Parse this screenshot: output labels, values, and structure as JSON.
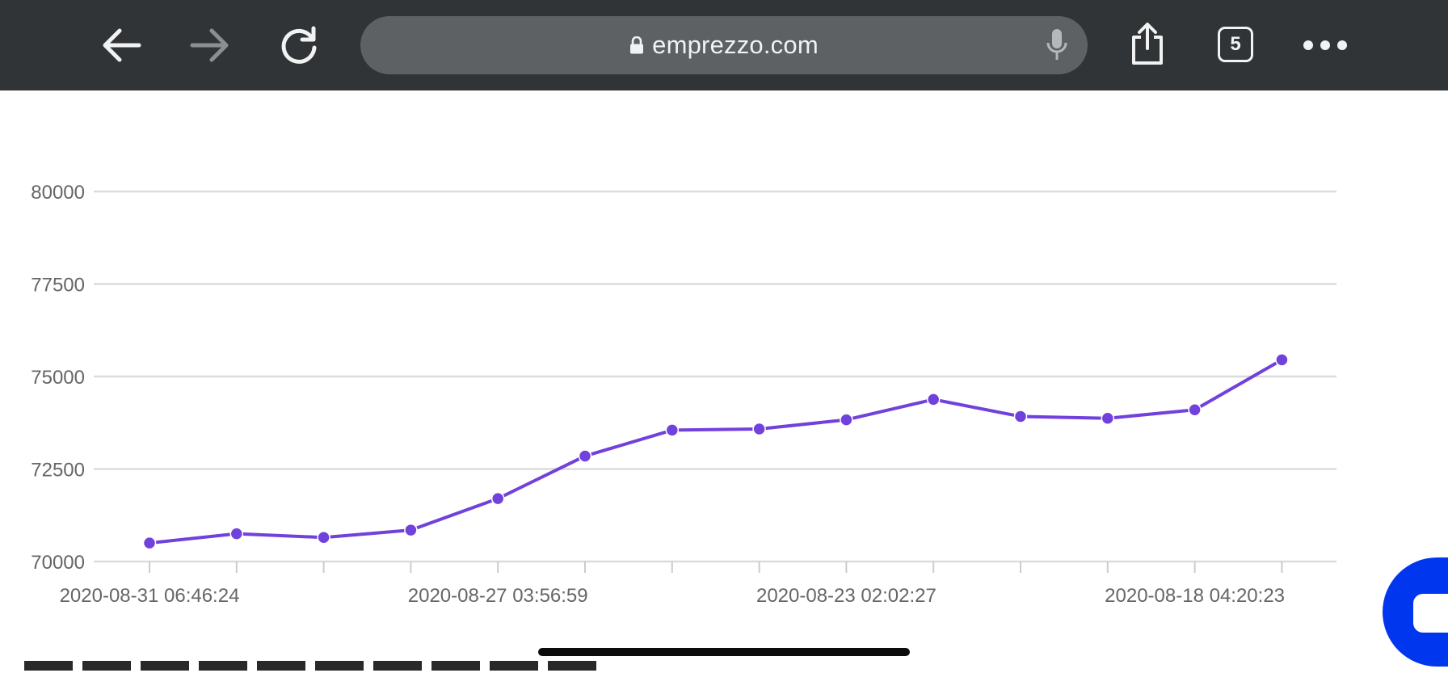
{
  "browser": {
    "url": "emprezzo.com",
    "tab_count": "5",
    "icons": {
      "back": "back-arrow-icon",
      "forward": "forward-arrow-icon",
      "reload": "reload-icon",
      "lock": "lock-icon",
      "mic": "microphone-icon",
      "share": "share-icon",
      "more": "more-dots-icon"
    }
  },
  "chart_data": {
    "type": "line",
    "title": "",
    "xlabel": "",
    "ylabel": "",
    "ylim": [
      70000,
      80000
    ],
    "yticks": [
      "80000",
      "77500",
      "75000",
      "72500",
      "70000"
    ],
    "x_tick_labels": [
      {
        "index": 0,
        "label": "2020-08-31 06:46:24"
      },
      {
        "index": 4,
        "label": "2020-08-27 03:56:59"
      },
      {
        "index": 8,
        "label": "2020-08-23 02:02:27"
      },
      {
        "index": 12,
        "label": "2020-08-18 04:20:23"
      }
    ],
    "point_count": 14,
    "values": [
      70500,
      70750,
      70650,
      70850,
      71700,
      72850,
      73550,
      73580,
      73830,
      74380,
      73920,
      73870,
      74100,
      75450
    ],
    "grid": true,
    "color": "#7141db"
  },
  "overlay": {
    "chat_icon": "chat-bubble-icon"
  }
}
